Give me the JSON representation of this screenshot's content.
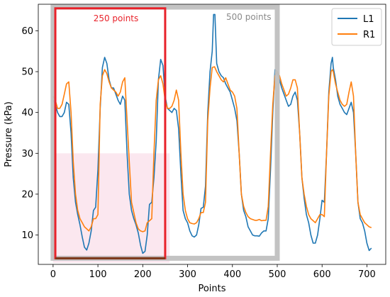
{
  "chart_data": {
    "type": "line",
    "title": "",
    "xlabel": "Points",
    "ylabel": "Pressure (kPa)",
    "xlim": [
      -33,
      742
    ],
    "ylim": [
      2.8,
      66.5
    ],
    "x_ticks": [
      0,
      100,
      200,
      300,
      400,
      500,
      600,
      700
    ],
    "y_ticks": [
      10,
      20,
      30,
      40,
      50,
      60
    ],
    "grid": false,
    "legend": {
      "placement": "top-right"
    },
    "series": [
      {
        "name": "L1",
        "color": "#1f77b4",
        "points": [
          [
            0,
            43
          ],
          [
            5,
            42
          ],
          [
            10,
            40
          ],
          [
            15,
            39
          ],
          [
            20,
            39
          ],
          [
            25,
            40
          ],
          [
            30,
            42.5
          ],
          [
            35,
            42
          ],
          [
            40,
            35
          ],
          [
            45,
            24
          ],
          [
            50,
            18
          ],
          [
            55,
            15
          ],
          [
            60,
            12.5
          ],
          [
            65,
            9.5
          ],
          [
            70,
            7
          ],
          [
            75,
            6.3
          ],
          [
            80,
            8
          ],
          [
            85,
            11
          ],
          [
            90,
            16
          ],
          [
            95,
            16.8
          ],
          [
            100,
            26
          ],
          [
            105,
            41
          ],
          [
            110,
            51
          ],
          [
            115,
            53.5
          ],
          [
            120,
            52
          ],
          [
            125,
            48
          ],
          [
            130,
            46
          ],
          [
            135,
            46
          ],
          [
            140,
            44.5
          ],
          [
            145,
            43
          ],
          [
            150,
            42
          ],
          [
            155,
            44
          ],
          [
            160,
            43
          ],
          [
            165,
            30
          ],
          [
            170,
            20
          ],
          [
            175,
            16
          ],
          [
            180,
            14
          ],
          [
            185,
            12.5
          ],
          [
            190,
            10.5
          ],
          [
            195,
            7.5
          ],
          [
            200,
            5.5
          ],
          [
            205,
            6
          ],
          [
            210,
            10
          ],
          [
            215,
            17.5
          ],
          [
            220,
            18
          ],
          [
            225,
            24
          ],
          [
            230,
            33
          ],
          [
            235,
            48
          ],
          [
            240,
            53
          ],
          [
            245,
            51.5
          ],
          [
            250,
            44
          ],
          [
            255,
            41
          ],
          [
            260,
            40.5
          ],
          [
            265,
            40
          ],
          [
            270,
            41
          ],
          [
            275,
            40.5
          ],
          [
            280,
            36
          ],
          [
            285,
            25
          ],
          [
            290,
            16
          ],
          [
            295,
            14
          ],
          [
            300,
            13
          ],
          [
            305,
            11
          ],
          [
            310,
            9.8
          ],
          [
            315,
            9.5
          ],
          [
            320,
            10
          ],
          [
            325,
            12.5
          ],
          [
            330,
            16.5
          ],
          [
            335,
            16.8
          ],
          [
            340,
            22
          ],
          [
            345,
            40
          ],
          [
            350,
            50
          ],
          [
            355,
            55
          ],
          [
            358,
            64
          ],
          [
            361,
            64
          ],
          [
            365,
            52
          ],
          [
            370,
            50
          ],
          [
            375,
            49
          ],
          [
            380,
            48.5
          ],
          [
            385,
            47
          ],
          [
            390,
            46
          ],
          [
            395,
            45
          ],
          [
            400,
            43
          ],
          [
            405,
            41
          ],
          [
            410,
            38
          ],
          [
            415,
            30
          ],
          [
            420,
            20
          ],
          [
            425,
            16
          ],
          [
            430,
            14.5
          ],
          [
            435,
            12
          ],
          [
            440,
            11
          ],
          [
            445,
            10
          ],
          [
            450,
            9.8
          ],
          [
            455,
            9.8
          ],
          [
            460,
            9.7
          ],
          [
            465,
            10.5
          ],
          [
            470,
            11
          ],
          [
            475,
            11
          ],
          [
            480,
            14
          ],
          [
            485,
            26
          ],
          [
            490,
            40
          ],
          [
            495,
            50.5
          ],
          [
            500,
            50
          ],
          [
            505,
            48
          ],
          [
            510,
            46
          ],
          [
            515,
            44.5
          ],
          [
            520,
            43
          ],
          [
            525,
            41.5
          ],
          [
            530,
            42
          ],
          [
            535,
            44
          ],
          [
            540,
            45
          ],
          [
            545,
            43
          ],
          [
            550,
            35
          ],
          [
            555,
            24
          ],
          [
            560,
            19
          ],
          [
            565,
            15
          ],
          [
            570,
            13
          ],
          [
            575,
            10
          ],
          [
            580,
            8
          ],
          [
            585,
            8
          ],
          [
            590,
            10
          ],
          [
            595,
            14
          ],
          [
            600,
            18.5
          ],
          [
            605,
            18
          ],
          [
            610,
            30
          ],
          [
            615,
            45
          ],
          [
            620,
            52
          ],
          [
            623,
            53.5
          ],
          [
            625,
            51
          ],
          [
            630,
            48
          ],
          [
            635,
            44
          ],
          [
            640,
            42
          ],
          [
            645,
            41
          ],
          [
            650,
            40
          ],
          [
            655,
            39.5
          ],
          [
            660,
            41
          ],
          [
            665,
            42.5
          ],
          [
            670,
            40
          ],
          [
            675,
            30
          ],
          [
            680,
            18
          ],
          [
            685,
            14
          ],
          [
            690,
            13
          ],
          [
            695,
            11
          ],
          [
            700,
            8
          ],
          [
            705,
            6.2
          ],
          [
            710,
            6.8
          ]
        ]
      },
      {
        "name": "R1",
        "color": "#ff7f0e",
        "points": [
          [
            0,
            44
          ],
          [
            5,
            43
          ],
          [
            10,
            41
          ],
          [
            15,
            41
          ],
          [
            20,
            42
          ],
          [
            25,
            44.5
          ],
          [
            30,
            47
          ],
          [
            35,
            47.5
          ],
          [
            40,
            40
          ],
          [
            45,
            28
          ],
          [
            50,
            20
          ],
          [
            55,
            16
          ],
          [
            60,
            14
          ],
          [
            65,
            13
          ],
          [
            70,
            12
          ],
          [
            75,
            11.5
          ],
          [
            80,
            11
          ],
          [
            85,
            12
          ],
          [
            90,
            14
          ],
          [
            95,
            14
          ],
          [
            100,
            15
          ],
          [
            105,
            42
          ],
          [
            110,
            49
          ],
          [
            115,
            50.5
          ],
          [
            120,
            49.5
          ],
          [
            125,
            47.5
          ],
          [
            130,
            46
          ],
          [
            135,
            45.5
          ],
          [
            140,
            45
          ],
          [
            145,
            44
          ],
          [
            150,
            45
          ],
          [
            155,
            47.5
          ],
          [
            160,
            48.5
          ],
          [
            165,
            38
          ],
          [
            170,
            28
          ],
          [
            175,
            18
          ],
          [
            180,
            15.5
          ],
          [
            185,
            13
          ],
          [
            190,
            11.5
          ],
          [
            195,
            11
          ],
          [
            200,
            10.8
          ],
          [
            205,
            11
          ],
          [
            210,
            13
          ],
          [
            215,
            13.5
          ],
          [
            220,
            14
          ],
          [
            225,
            30
          ],
          [
            230,
            43
          ],
          [
            235,
            48
          ],
          [
            240,
            49
          ],
          [
            245,
            47
          ],
          [
            250,
            43
          ],
          [
            255,
            41
          ],
          [
            260,
            41
          ],
          [
            265,
            41.5
          ],
          [
            270,
            43
          ],
          [
            275,
            45.5
          ],
          [
            280,
            43
          ],
          [
            285,
            30
          ],
          [
            290,
            20
          ],
          [
            295,
            16
          ],
          [
            300,
            14
          ],
          [
            305,
            13
          ],
          [
            310,
            12.8
          ],
          [
            315,
            12.7
          ],
          [
            320,
            13
          ],
          [
            325,
            14
          ],
          [
            330,
            15.5
          ],
          [
            335,
            15.5
          ],
          [
            340,
            18
          ],
          [
            345,
            38
          ],
          [
            350,
            46
          ],
          [
            355,
            51
          ],
          [
            360,
            51.2
          ],
          [
            365,
            50
          ],
          [
            370,
            49
          ],
          [
            375,
            48
          ],
          [
            380,
            47.5
          ],
          [
            385,
            48.5
          ],
          [
            390,
            47
          ],
          [
            395,
            45.5
          ],
          [
            400,
            45
          ],
          [
            405,
            44
          ],
          [
            410,
            41
          ],
          [
            415,
            30
          ],
          [
            420,
            20
          ],
          [
            425,
            17
          ],
          [
            430,
            15.5
          ],
          [
            435,
            14.5
          ],
          [
            440,
            14
          ],
          [
            445,
            13.8
          ],
          [
            450,
            13.6
          ],
          [
            455,
            13.6
          ],
          [
            460,
            13.8
          ],
          [
            465,
            13.5
          ],
          [
            470,
            13.6
          ],
          [
            475,
            13.6
          ],
          [
            480,
            17
          ],
          [
            485,
            30
          ],
          [
            490,
            42
          ],
          [
            495,
            49
          ],
          [
            500,
            50
          ],
          [
            505,
            49
          ],
          [
            510,
            47
          ],
          [
            515,
            45.5
          ],
          [
            520,
            44
          ],
          [
            525,
            44.5
          ],
          [
            530,
            46
          ],
          [
            535,
            48
          ],
          [
            540,
            48
          ],
          [
            545,
            46
          ],
          [
            550,
            35
          ],
          [
            555,
            24
          ],
          [
            560,
            20
          ],
          [
            565,
            17
          ],
          [
            570,
            15
          ],
          [
            575,
            14
          ],
          [
            580,
            13.5
          ],
          [
            585,
            13
          ],
          [
            590,
            14
          ],
          [
            595,
            15
          ],
          [
            600,
            15
          ],
          [
            605,
            14.5
          ],
          [
            610,
            30
          ],
          [
            615,
            44
          ],
          [
            620,
            50
          ],
          [
            623,
            50.5
          ],
          [
            625,
            50
          ],
          [
            630,
            47
          ],
          [
            635,
            45
          ],
          [
            640,
            43
          ],
          [
            645,
            42
          ],
          [
            650,
            41.5
          ],
          [
            655,
            42
          ],
          [
            660,
            45
          ],
          [
            665,
            47.5
          ],
          [
            670,
            44
          ],
          [
            675,
            30
          ],
          [
            680,
            18
          ],
          [
            685,
            15
          ],
          [
            690,
            14
          ],
          [
            695,
            13
          ],
          [
            700,
            12.5
          ],
          [
            705,
            12
          ],
          [
            710,
            11.8
          ]
        ]
      }
    ],
    "annotations": [
      {
        "label": "250 points",
        "color": "#e8222a",
        "x_range": [
          5,
          250
        ],
        "y_range": [
          4.3,
          65.5
        ]
      },
      {
        "label": "500 points",
        "color": "#c0c0c0",
        "label_color": "#8a8a8a",
        "x_range": [
          0,
          500
        ],
        "y_range": [
          4.3,
          65.8
        ]
      }
    ],
    "highlight_band": {
      "color": "#f4b9d2",
      "x_range": [
        0,
        260
      ],
      "y_range": [
        3.2,
        30
      ]
    }
  }
}
